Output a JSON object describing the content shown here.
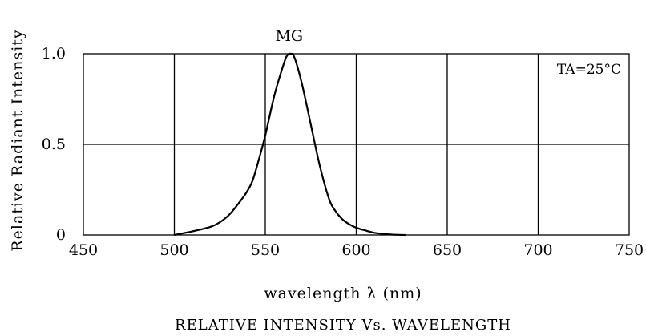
{
  "chart_data": {
    "type": "line",
    "title": "RELATIVE INTENSITY Vs. WAVELENGTH",
    "xlabel": "wavelength λ (nm)",
    "ylabel": "Relative Radiant Intensity",
    "xlim": [
      450,
      750
    ],
    "ylim": [
      0,
      1.0
    ],
    "x_ticks": [
      450,
      500,
      550,
      600,
      650,
      700,
      750
    ],
    "x_tick_labels": [
      "450",
      "500",
      "550",
      "600",
      "650",
      "700",
      "750"
    ],
    "y_ticks": [
      0,
      0.5,
      1.0
    ],
    "y_tick_labels": [
      "0",
      "0.5",
      "1.0"
    ],
    "grid": true,
    "annotations": [
      {
        "text": "MG",
        "role": "curve-label"
      },
      {
        "text": "TA=25°C",
        "role": "condition"
      }
    ],
    "series": [
      {
        "name": "MG",
        "x": [
          500,
          510,
          520,
          525,
          530,
          535,
          540,
          543,
          546,
          550,
          555,
          560,
          562,
          564,
          566,
          570,
          575,
          580,
          585,
          588,
          592,
          596,
          600,
          605,
          610,
          615,
          620,
          627
        ],
        "y": [
          0.0,
          0.02,
          0.045,
          0.07,
          0.11,
          0.17,
          0.24,
          0.3,
          0.4,
          0.55,
          0.77,
          0.94,
          0.99,
          1.0,
          0.98,
          0.84,
          0.61,
          0.38,
          0.2,
          0.14,
          0.09,
          0.06,
          0.04,
          0.025,
          0.012,
          0.006,
          0.002,
          0.0
        ]
      }
    ]
  }
}
